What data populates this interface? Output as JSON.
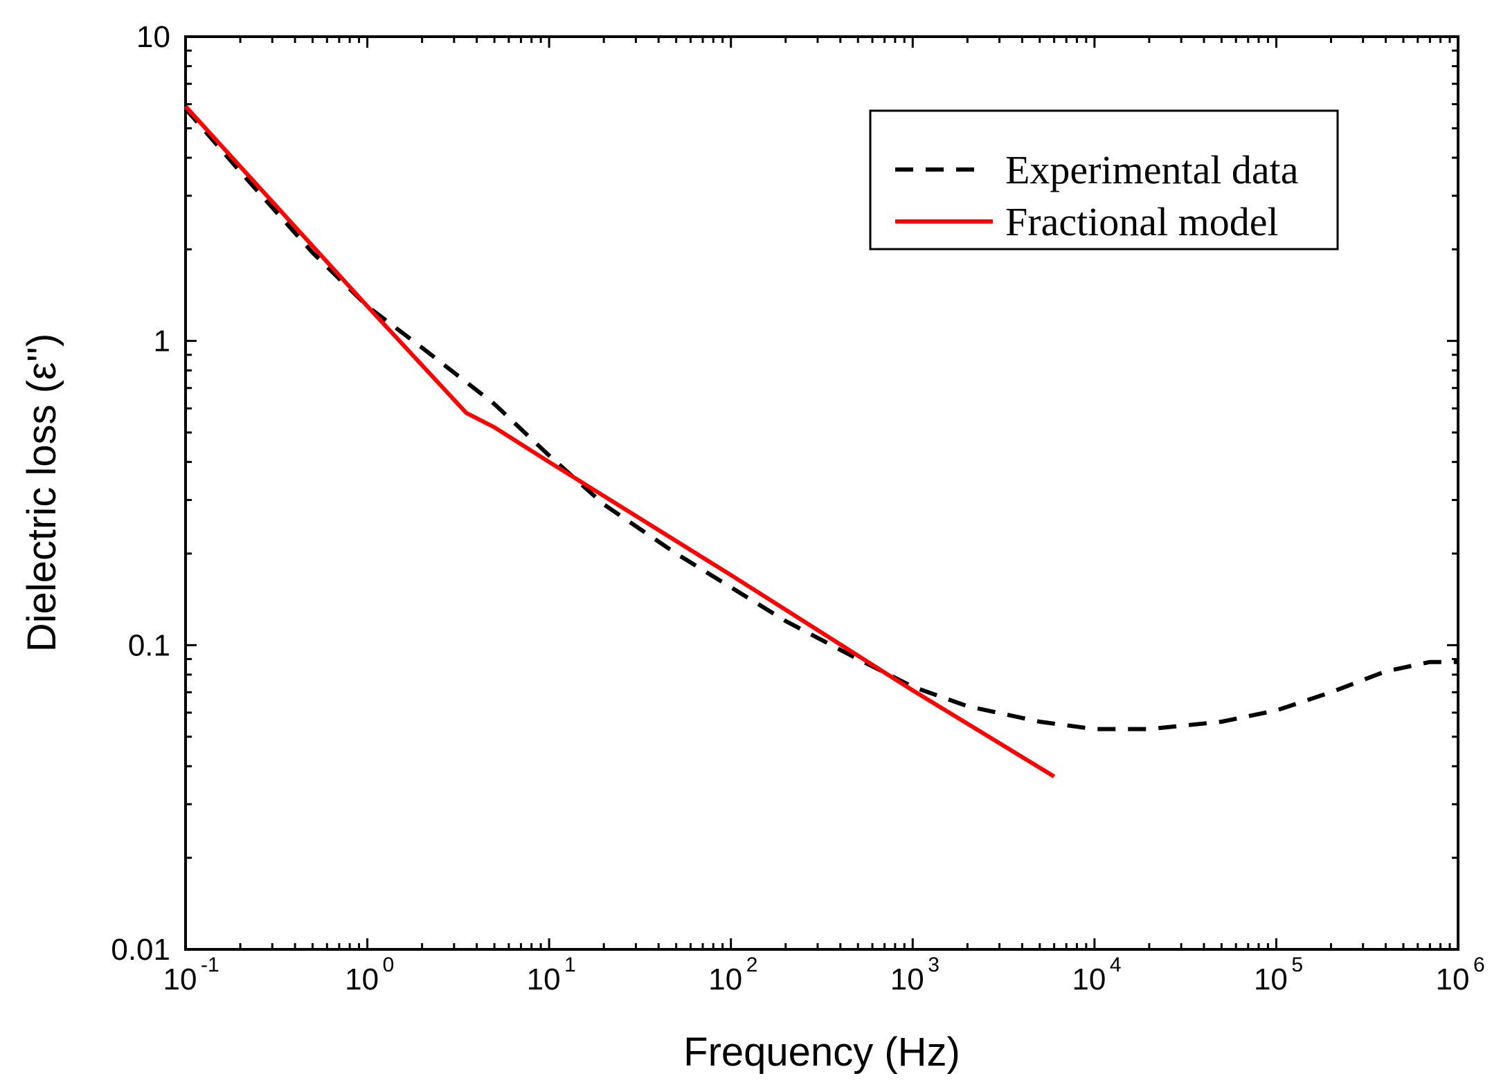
{
  "chart_data": {
    "type": "line",
    "title": "",
    "xlabel": "Frequency (Hz)",
    "ylabel": "Dielectric loss (ε'')",
    "xscale": "log",
    "yscale": "log",
    "xlim": [
      0.1,
      1000000
    ],
    "ylim": [
      0.01,
      10
    ],
    "grid": false,
    "legend_position": "top-right",
    "x_ticks": [
      {
        "value": 0.1,
        "base": "10",
        "exp": "-1"
      },
      {
        "value": 1,
        "base": "10",
        "exp": "0"
      },
      {
        "value": 10,
        "base": "10",
        "exp": "1"
      },
      {
        "value": 100,
        "base": "10",
        "exp": "2"
      },
      {
        "value": 1000,
        "base": "10",
        "exp": "3"
      },
      {
        "value": 10000,
        "base": "10",
        "exp": "4"
      },
      {
        "value": 100000,
        "base": "10",
        "exp": "5"
      },
      {
        "value": 1000000,
        "base": "10",
        "exp": "6"
      }
    ],
    "y_ticks": [
      {
        "value": 0.01,
        "label": "0.01"
      },
      {
        "value": 0.1,
        "label": "0.1"
      },
      {
        "value": 1,
        "label": "1"
      },
      {
        "value": 10,
        "label": "10"
      }
    ],
    "series": [
      {
        "name": "Experimental data",
        "style": "dashed",
        "color": "#000000",
        "points": [
          [
            0.1,
            5.8
          ],
          [
            0.2,
            3.6
          ],
          [
            0.5,
            1.95
          ],
          [
            1,
            1.3
          ],
          [
            2,
            0.95
          ],
          [
            5,
            0.62
          ],
          [
            10,
            0.42
          ],
          [
            20,
            0.29
          ],
          [
            50,
            0.2
          ],
          [
            100,
            0.155
          ],
          [
            200,
            0.12
          ],
          [
            500,
            0.09
          ],
          [
            1000,
            0.073
          ],
          [
            2000,
            0.063
          ],
          [
            5000,
            0.056
          ],
          [
            10000,
            0.053
          ],
          [
            20000,
            0.053
          ],
          [
            50000,
            0.056
          ],
          [
            100000,
            0.061
          ],
          [
            200000,
            0.07
          ],
          [
            400000,
            0.082
          ],
          [
            700000,
            0.088
          ],
          [
            1000000,
            0.088
          ]
        ]
      },
      {
        "name": "Fractional model",
        "style": "solid",
        "color": "#ff0000",
        "points": [
          [
            0.1,
            5.9
          ],
          [
            1,
            1.3
          ],
          [
            3.5,
            0.58
          ],
          [
            5,
            0.52
          ],
          [
            10,
            0.4
          ],
          [
            100,
            0.17
          ],
          [
            1000,
            0.071
          ],
          [
            6000,
            0.037
          ]
        ]
      }
    ]
  }
}
